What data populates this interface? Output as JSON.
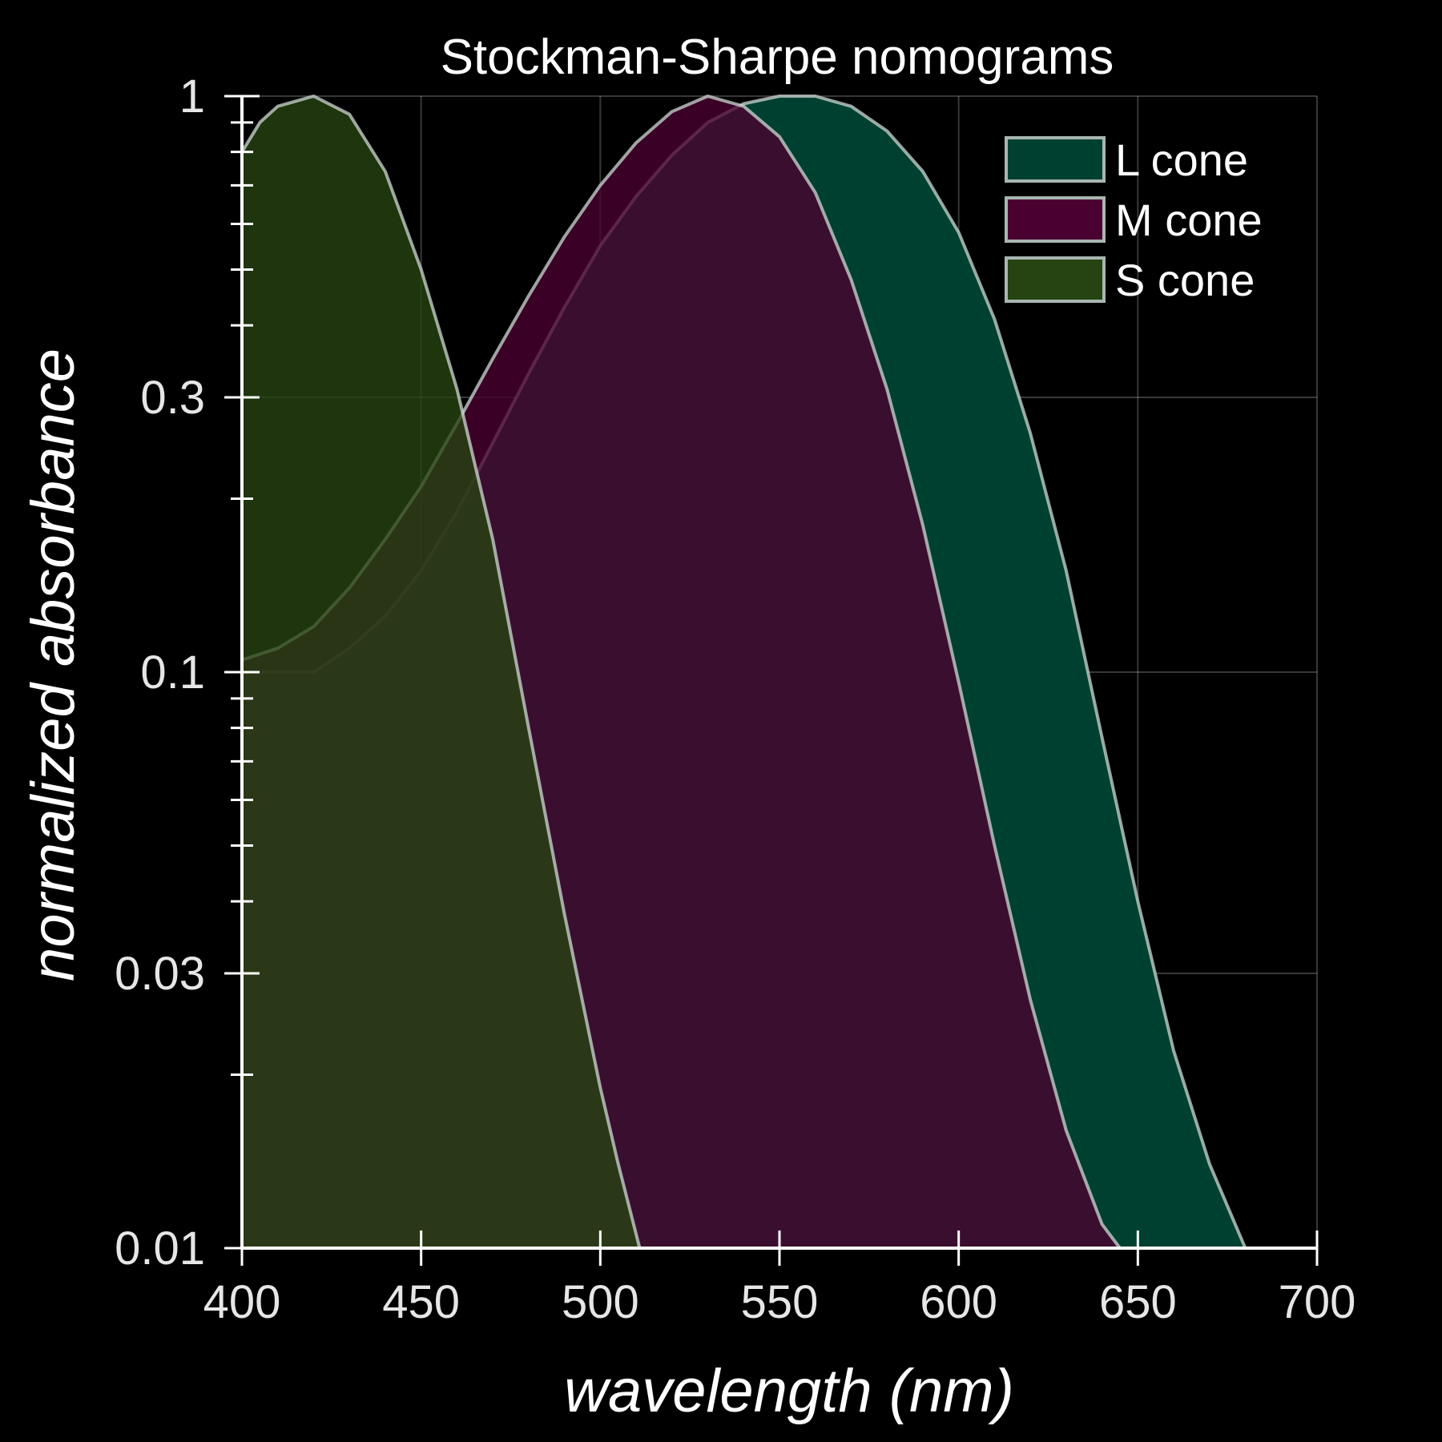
{
  "chart_data": {
    "type": "area",
    "title": "Stockman-Sharpe nomograms",
    "xlabel": "wavelength (nm)",
    "ylabel": "normalized absorbance",
    "xlim": [
      400,
      700
    ],
    "ylim": [
      0.01,
      1
    ],
    "yscale": "log",
    "grid": true,
    "legend_position": "top-right",
    "x_ticks": [
      400,
      450,
      500,
      550,
      600,
      650,
      700
    ],
    "x_tick_labels": [
      "400",
      "450",
      "500",
      "550",
      "600",
      "650",
      "700"
    ],
    "y_ticks": [
      0.01,
      0.03,
      0.1,
      0.3,
      1
    ],
    "y_tick_labels": [
      "0.01",
      "0.03",
      "0.1",
      "0.3",
      "1"
    ],
    "series": [
      {
        "name": "L cone",
        "fill": "#004030",
        "x": [
          400,
          410,
          420,
          430,
          440,
          450,
          460,
          470,
          480,
          490,
          500,
          510,
          520,
          530,
          540,
          550,
          560,
          570,
          580,
          590,
          600,
          610,
          620,
          630,
          640,
          650,
          660,
          670,
          680
        ],
        "y": [
          0.1,
          0.1,
          0.1,
          0.11,
          0.125,
          0.15,
          0.19,
          0.25,
          0.33,
          0.43,
          0.55,
          0.67,
          0.79,
          0.9,
          0.97,
          1.0,
          1.0,
          0.96,
          0.87,
          0.74,
          0.58,
          0.41,
          0.26,
          0.15,
          0.077,
          0.04,
          0.022,
          0.014,
          0.01
        ]
      },
      {
        "name": "M cone",
        "fill": "#4a0030",
        "x": [
          400,
          410,
          420,
          430,
          440,
          450,
          460,
          470,
          480,
          490,
          500,
          510,
          520,
          530,
          540,
          550,
          560,
          570,
          580,
          590,
          600,
          610,
          620,
          630,
          640,
          645
        ],
        "y": [
          0.105,
          0.11,
          0.12,
          0.14,
          0.17,
          0.21,
          0.27,
          0.35,
          0.45,
          0.57,
          0.7,
          0.83,
          0.94,
          1.0,
          0.96,
          0.85,
          0.68,
          0.48,
          0.31,
          0.18,
          0.096,
          0.05,
          0.027,
          0.016,
          0.011,
          0.01
        ]
      },
      {
        "name": "S cone",
        "fill": "#264411",
        "x": [
          400,
          405,
          410,
          420,
          430,
          440,
          450,
          460,
          470,
          480,
          490,
          500,
          505,
          511
        ],
        "y": [
          0.8,
          0.9,
          0.96,
          1.0,
          0.93,
          0.74,
          0.5,
          0.31,
          0.17,
          0.08,
          0.038,
          0.019,
          0.014,
          0.01
        ]
      }
    ]
  }
}
